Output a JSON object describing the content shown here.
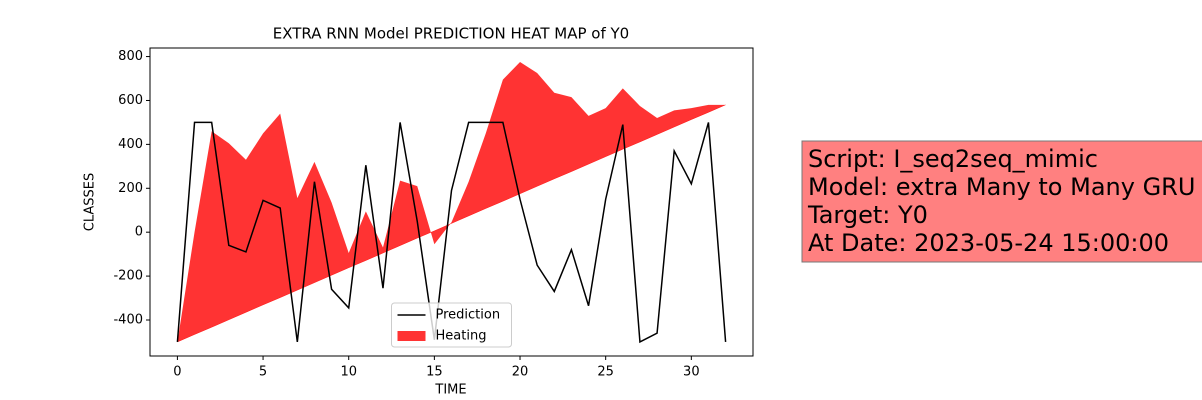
{
  "chart_data": {
    "type": "line",
    "title": "EXTRA RNN Model PREDICTION HEAT MAP of Y0",
    "xlabel": "TIME",
    "ylabel": "CLASSES",
    "x": [
      0,
      1,
      2,
      3,
      4,
      5,
      6,
      7,
      8,
      9,
      10,
      11,
      12,
      13,
      14,
      15,
      16,
      17,
      18,
      19,
      20,
      21,
      22,
      23,
      24,
      25,
      26,
      27,
      28,
      29,
      30,
      31,
      32
    ],
    "series": [
      {
        "name": "Prediction",
        "color": "#000000",
        "values": [
          -500,
          500,
          500,
          -60,
          -90,
          145,
          110,
          -500,
          230,
          -260,
          -345,
          305,
          -255,
          500,
          50,
          -490,
          190,
          500,
          500,
          500,
          150,
          -150,
          -270,
          -80,
          -335,
          150,
          490,
          -500,
          -460,
          370,
          220,
          500,
          -500
        ]
      },
      {
        "name": "Heating",
        "color": "#ff0000",
        "opacity": 0.8,
        "values": [
          -500,
          0,
          460,
          405,
          330,
          450,
          540,
          155,
          320,
          135,
          -95,
          95,
          -70,
          235,
          210,
          -55,
          45,
          230,
          450,
          695,
          775,
          725,
          635,
          615,
          530,
          565,
          655,
          575,
          520,
          555,
          565,
          580,
          580
        ],
        "base": [
          -500,
          -466,
          -433,
          -399,
          -365,
          -331,
          -298,
          -264,
          -230,
          -196,
          -162,
          -129,
          -95,
          -61,
          -27,
          6,
          40,
          74,
          108,
          141,
          175,
          209,
          243,
          276,
          310,
          344,
          378,
          411,
          445,
          479,
          513,
          546,
          580
        ]
      }
    ],
    "xlim": [
      -1.6,
      33.6
    ],
    "ylim": [
      -564,
      839
    ],
    "xticks": [
      0,
      5,
      10,
      15,
      20,
      25,
      30
    ],
    "yticks": [
      -400,
      -200,
      0,
      200,
      400,
      600,
      800
    ],
    "legend": "lower center",
    "annotation": [
      "Script: I_seq2seq_mimic",
      "Model: extra Many to Many GRU",
      "Target: Y0",
      "At Date: 2023-05-24 15:00:00"
    ]
  }
}
